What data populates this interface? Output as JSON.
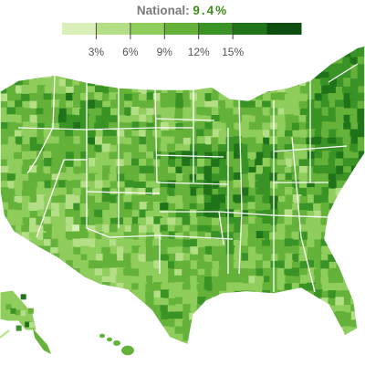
{
  "header": {
    "national_label": "National:",
    "national_value": "9.4%"
  },
  "legend": {
    "ticks": [
      "3%",
      "6%",
      "9%",
      "12%",
      "15%"
    ],
    "colors": [
      "#d9f0b8",
      "#b4df86",
      "#8fcd5c",
      "#64b23a",
      "#3a9325",
      "#1f7319",
      "#0d4d10"
    ]
  },
  "map": {
    "background": "#ffffff",
    "border_color": "#ffffff"
  }
}
